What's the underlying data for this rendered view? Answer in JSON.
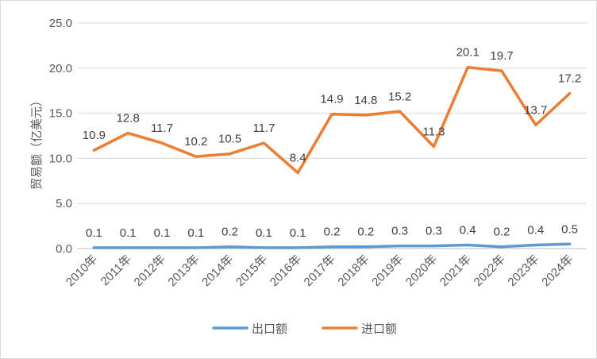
{
  "chart_data": {
    "type": "line",
    "title": "",
    "xlabel": "",
    "ylabel": "贸易额（亿美元）",
    "ylim": [
      0,
      25
    ],
    "yticks": [
      "0.0",
      "5.0",
      "10.0",
      "15.0",
      "20.0",
      "25.0"
    ],
    "grid": true,
    "legend_position": "bottom",
    "categories": [
      "2010年",
      "2011年",
      "2012年",
      "2013年",
      "2014年",
      "2015年",
      "2016年",
      "2017年",
      "2018年",
      "2019年",
      "2020年",
      "2021年",
      "2022年",
      "2023年",
      "2024年"
    ],
    "series": [
      {
        "name": "出口额",
        "color": "#5B9BD5",
        "values": [
          0.1,
          0.1,
          0.1,
          0.1,
          0.2,
          0.1,
          0.1,
          0.2,
          0.2,
          0.3,
          0.3,
          0.4,
          0.2,
          0.4,
          0.5
        ],
        "labels": [
          "0.1",
          "0.1",
          "0.1",
          "0.1",
          "0.2",
          "0.1",
          "0.1",
          "0.2",
          "0.2",
          "0.3",
          "0.3",
          "0.4",
          "0.2",
          "0.4",
          "0.5"
        ]
      },
      {
        "name": "进口额",
        "color": "#ED7D31",
        "values": [
          10.9,
          12.8,
          11.7,
          10.2,
          10.5,
          11.7,
          8.4,
          14.9,
          14.8,
          15.2,
          11.3,
          20.1,
          19.7,
          13.7,
          17.2
        ],
        "labels": [
          "10.9",
          "12.8",
          "11.7",
          "10.2",
          "10.5",
          "11.7",
          "8.4",
          "14.9",
          "14.8",
          "15.2",
          "11.3",
          "20.1",
          "19.7",
          "13.7",
          "17.2"
        ]
      }
    ]
  }
}
